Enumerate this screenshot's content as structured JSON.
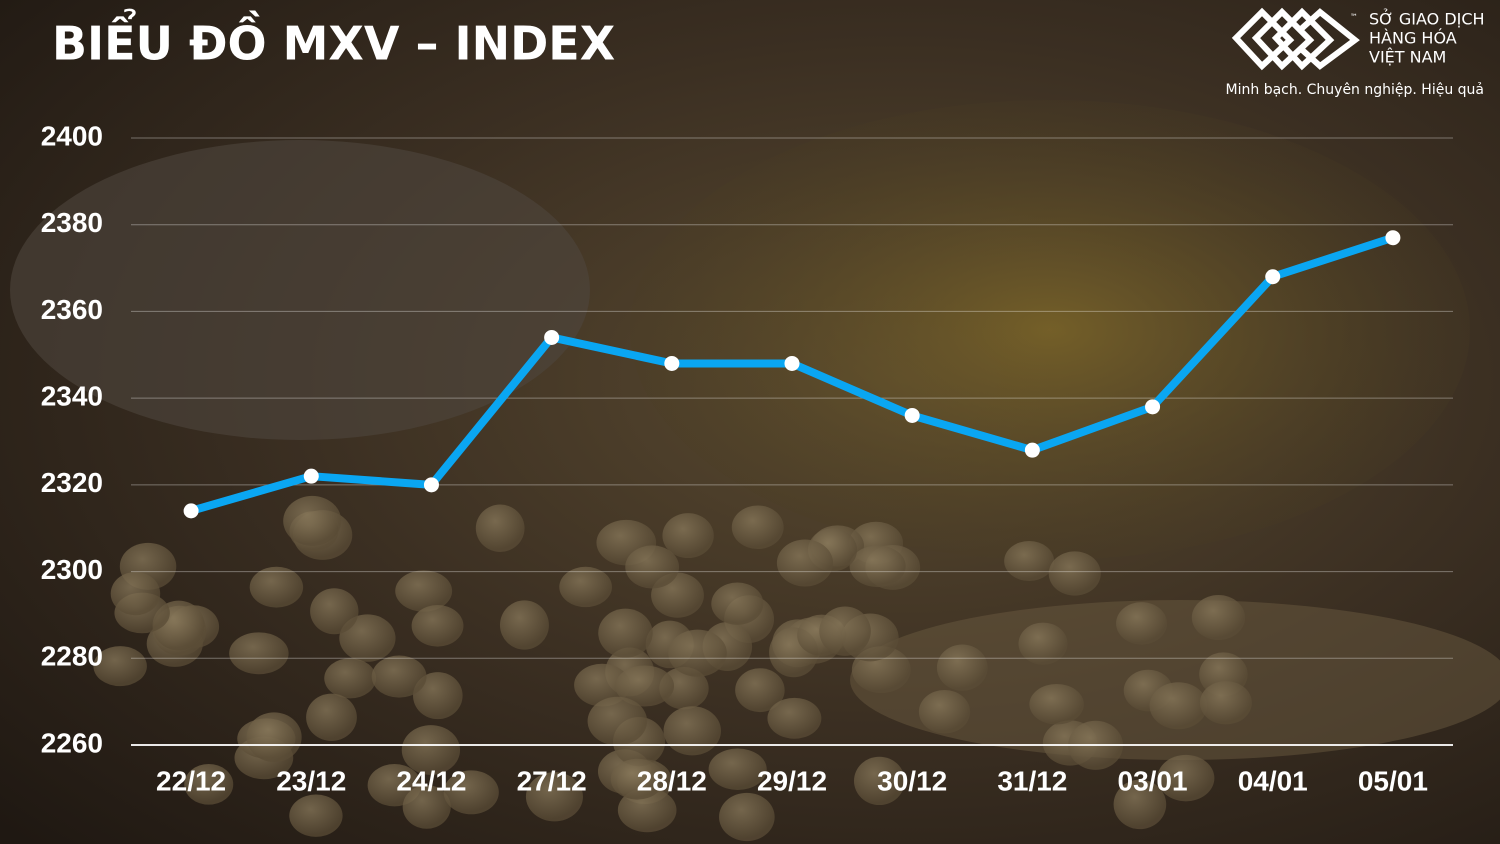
{
  "chart_data": {
    "type": "line",
    "title": "BIỂU ĐỒ MXV – INDEX",
    "categories": [
      "22/12",
      "23/12",
      "24/12",
      "27/12",
      "28/12",
      "29/12",
      "30/12",
      "31/12",
      "03/01",
      "04/01",
      "05/01"
    ],
    "values": [
      2314,
      2322,
      2320,
      2354,
      2348,
      2348,
      2336,
      2328,
      2338,
      2368,
      2377
    ],
    "color": "#0aa6f2",
    "ylim": [
      2260,
      2400
    ],
    "yticks": [
      2260,
      2280,
      2300,
      2320,
      2340,
      2360,
      2380,
      2400
    ],
    "grid": true
  },
  "logo": {
    "trademark": "™",
    "lines": [
      "SỞ GIAO DỊCH",
      "HÀNG HÓA",
      "VIỆT NAM"
    ],
    "slogan": "Minh bạch. Chuyên nghiệp. Hiệu quả"
  }
}
